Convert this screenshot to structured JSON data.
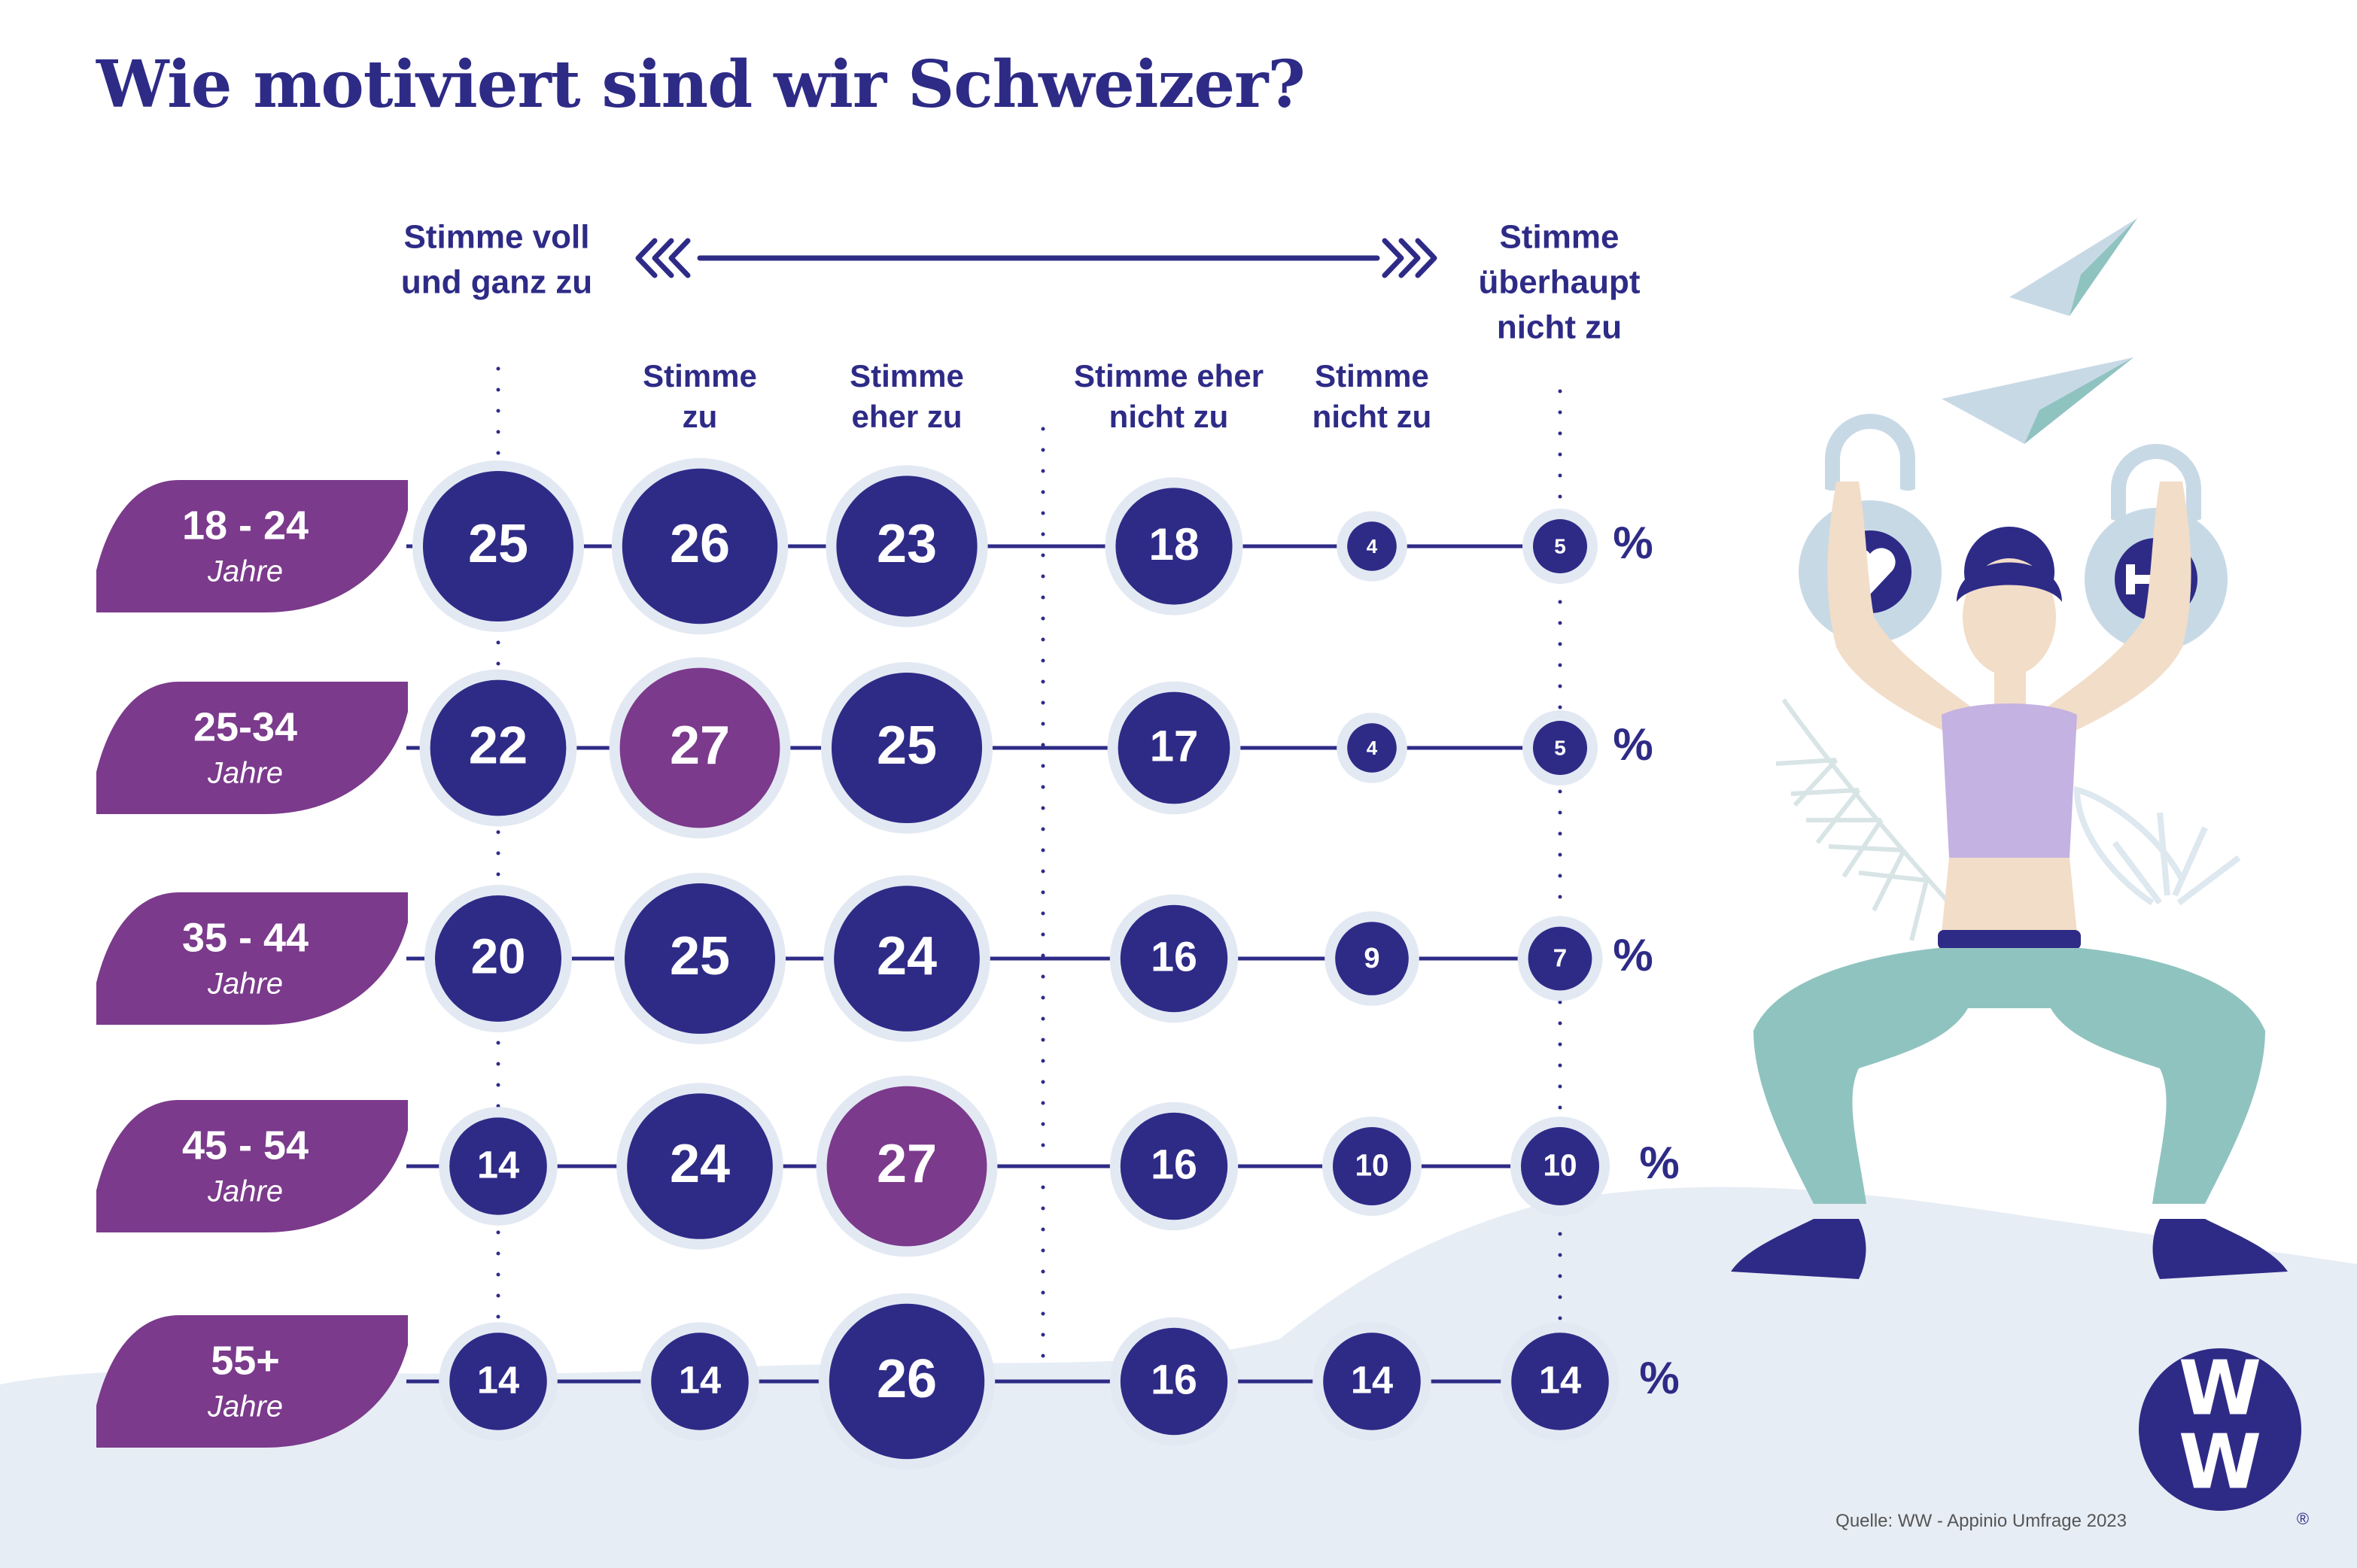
{
  "title": "Wie motiviert sind wir Schweizer?",
  "colors": {
    "navy": "#2e2b87",
    "purple": "#7b3a8c",
    "halo": "#e3e9f3",
    "hill": "#e7edf4"
  },
  "scale": {
    "left_label_lines": [
      "Stimme voll",
      "und ganz zu"
    ],
    "right_label_lines": [
      "Stimme",
      "überhaupt",
      "nicht zu"
    ]
  },
  "percent_sign": "%",
  "source": "Quelle: WW - Appinio Umfrage 2023",
  "logo": {
    "text_top": "W",
    "text_bottom": "W",
    "registered": "®"
  },
  "chart_data": {
    "type": "table",
    "unit": "%",
    "categories": [
      "Stimme voll und ganz zu",
      "Stimme zu",
      "Stimme eher zu",
      "Stimme eher nicht zu",
      "Stimme nicht zu",
      "Stimme überhaupt nicht zu"
    ],
    "columns": [
      {
        "lines": [
          "Stimme",
          "zu"
        ]
      },
      {
        "lines": [
          "Stimme",
          "eher zu"
        ]
      },
      {
        "lines": [
          "Stimme eher",
          "nicht zu"
        ]
      },
      {
        "lines": [
          "Stimme",
          "nicht zu"
        ]
      }
    ],
    "rows": [
      {
        "group": "18 - 24",
        "sub": "Jahre",
        "values": [
          25,
          26,
          23,
          18,
          4,
          5
        ],
        "highlight": null
      },
      {
        "group": "25-34",
        "sub": "Jahre",
        "values": [
          22,
          27,
          25,
          17,
          4,
          5
        ],
        "highlight": 1
      },
      {
        "group": "35 - 44",
        "sub": "Jahre",
        "values": [
          20,
          25,
          24,
          16,
          9,
          7
        ],
        "highlight": null
      },
      {
        "group": "45 - 54",
        "sub": "Jahre",
        "values": [
          14,
          24,
          27,
          16,
          10,
          10
        ],
        "highlight": 2
      },
      {
        "group": "55+",
        "sub": "Jahre",
        "values": [
          14,
          14,
          26,
          16,
          14,
          14
        ],
        "highlight": null
      }
    ]
  }
}
